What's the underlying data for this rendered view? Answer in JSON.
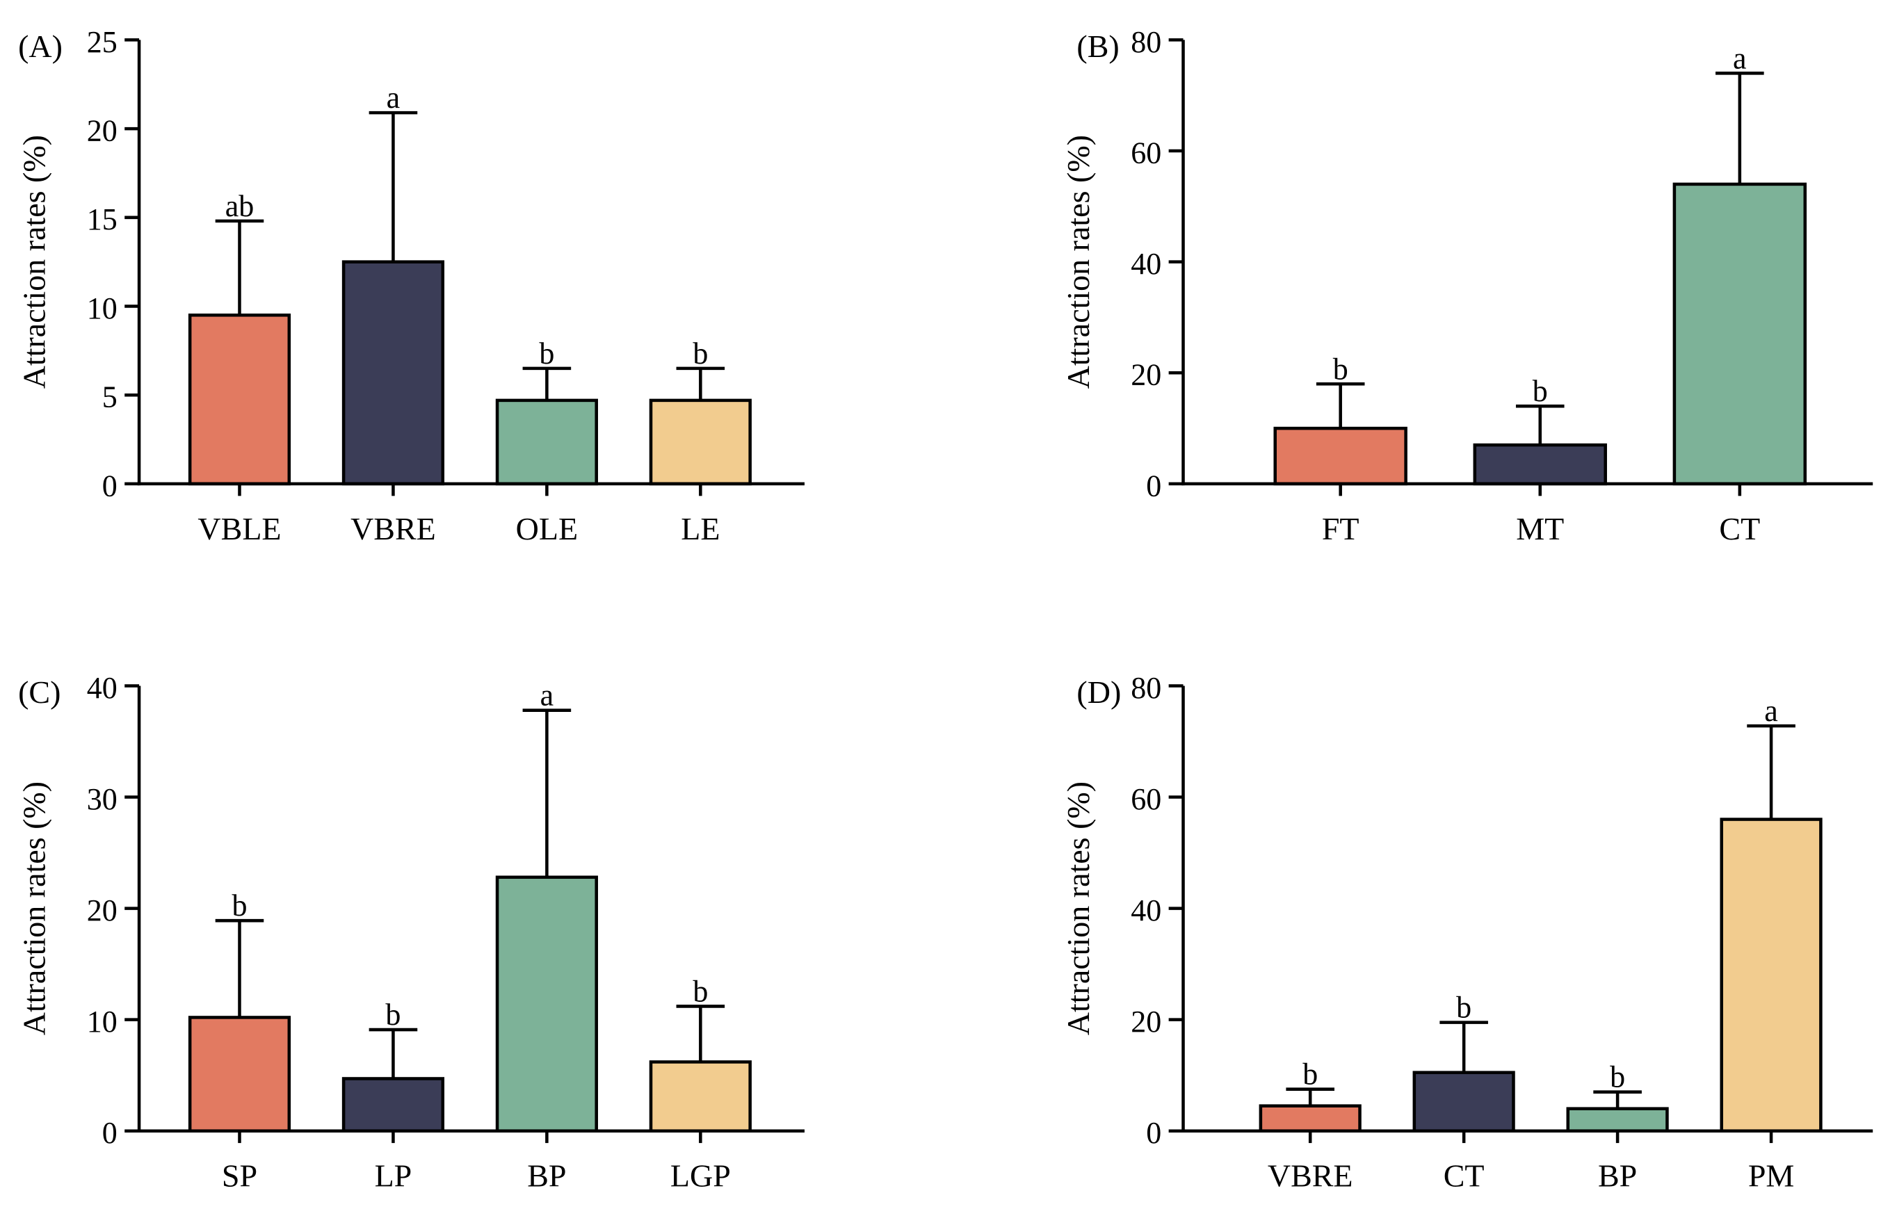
{
  "colors": {
    "orange": "#E27A61",
    "navy": "#3B3D57",
    "green": "#7DB298",
    "yellow": "#F2CC8F",
    "stroke": "#000000"
  },
  "chart_data": [
    {
      "panel": "(A)",
      "type": "bar",
      "ylabel": "Attraction rates  (%)",
      "xlabel": "",
      "ylim": [
        0,
        25
      ],
      "yticks": [
        0,
        5,
        10,
        15,
        20,
        25
      ],
      "grid": false,
      "categories": [
        "VBLE",
        "VBRE",
        "OLE",
        "LE"
      ],
      "values": [
        9.5,
        12.5,
        4.7,
        4.7
      ],
      "errors": [
        5.3,
        8.4,
        1.8,
        1.8
      ],
      "significance": [
        "ab",
        "a",
        "b",
        "b"
      ],
      "bar_colors": [
        "orange",
        "navy",
        "green",
        "yellow"
      ]
    },
    {
      "panel": "(B)",
      "type": "bar",
      "ylabel": "Attraction rates (%)",
      "xlabel": "",
      "ylim": [
        0,
        80
      ],
      "yticks": [
        0,
        20,
        40,
        60,
        80
      ],
      "grid": false,
      "categories": [
        "FT",
        "MT",
        "CT"
      ],
      "values": [
        10,
        7,
        54
      ],
      "errors": [
        8,
        7,
        20
      ],
      "significance": [
        "b",
        "b",
        "a"
      ],
      "bar_colors": [
        "orange",
        "navy",
        "green"
      ]
    },
    {
      "panel": "(C)",
      "type": "bar",
      "ylabel": "Attraction rates (%)",
      "xlabel": "",
      "ylim": [
        0,
        40
      ],
      "yticks": [
        0,
        10,
        20,
        30,
        40
      ],
      "grid": false,
      "categories": [
        "SP",
        "LP",
        "BP",
        "LGP"
      ],
      "values": [
        10.2,
        4.7,
        22.8,
        6.2
      ],
      "errors": [
        8.7,
        4.4,
        15,
        5
      ],
      "significance": [
        "b",
        "b",
        "a",
        "b"
      ],
      "bar_colors": [
        "orange",
        "navy",
        "green",
        "yellow"
      ]
    },
    {
      "panel": "(D)",
      "type": "bar",
      "ylabel": "Attraction rates (%)",
      "xlabel": "",
      "ylim": [
        0,
        80
      ],
      "yticks": [
        0,
        20,
        40,
        60,
        80
      ],
      "grid": false,
      "categories": [
        "VBRE",
        "CT",
        "BP",
        "PM"
      ],
      "values": [
        4.5,
        10.5,
        4,
        56
      ],
      "errors": [
        3,
        9,
        3,
        16.8
      ],
      "significance": [
        "b",
        "b",
        "b",
        "a"
      ],
      "bar_colors": [
        "orange",
        "navy",
        "green",
        "yellow"
      ]
    }
  ]
}
